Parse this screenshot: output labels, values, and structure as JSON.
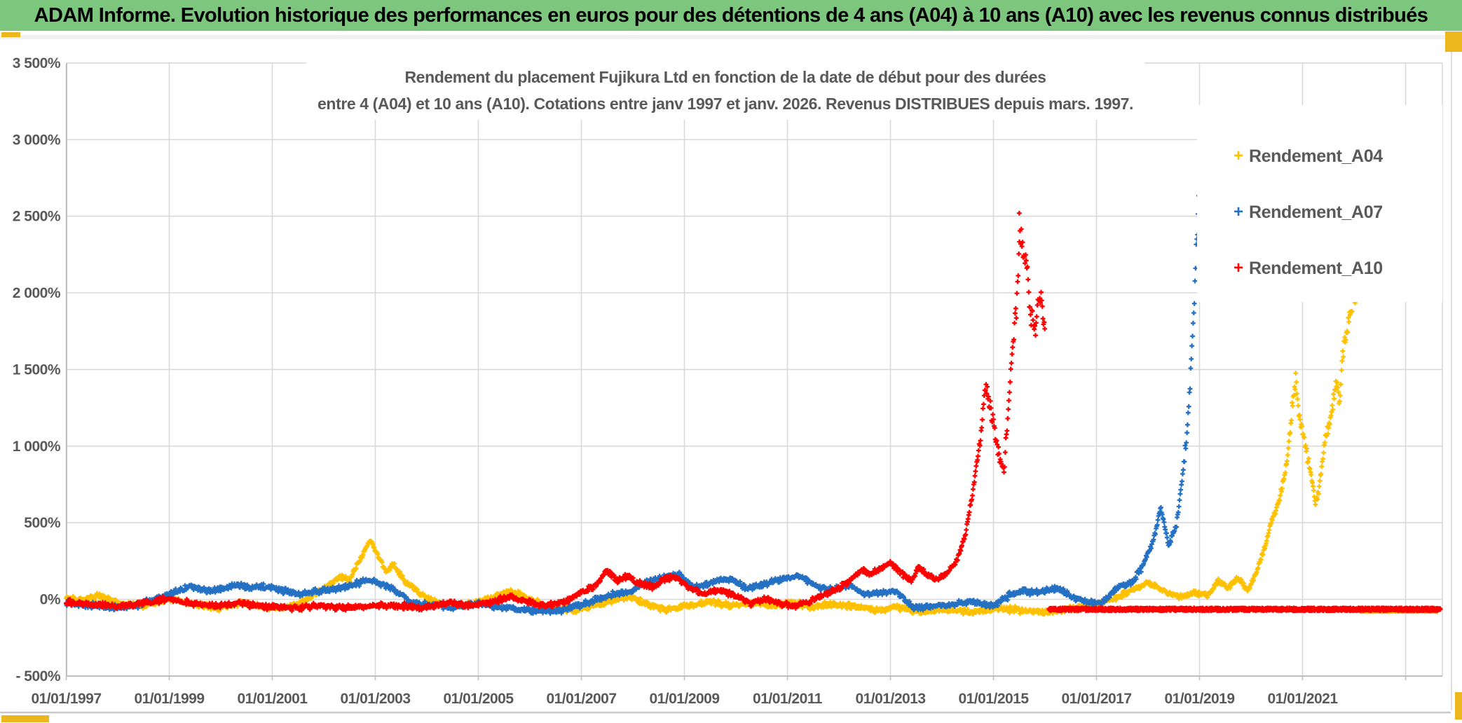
{
  "header": {
    "title": "ADAM Informe. Evolution historique des performances en euros pour des détentions de 4 ans (A04) à 10 ans (A10) avec les revenus connus distribués",
    "bg_color": "#7CC67E",
    "accent_gold": "#ECB61E"
  },
  "chart": {
    "title_line1": "Rendement du placement Fujikura Ltd en fonction de la date de début pour des durées",
    "title_line2": "entre 4 (A04) et 10 ans (A10). Cotations entre janv 1997 et janv. 2026. Revenus DISTRIBUES depuis mars. 1997.",
    "legend": [
      {
        "label": "Rendement_A04",
        "color": "#FFC000"
      },
      {
        "label": "Rendement_A07",
        "color": "#2471C4"
      },
      {
        "label": "Rendement_A10",
        "color": "#FF0000"
      }
    ],
    "grid_color": "#D9D9D9",
    "axis_color": "#BFBFBF",
    "label_color": "#595959"
  },
  "chart_data": {
    "type": "scatter",
    "title": "Rendement du placement Fujikura Ltd en fonction de la date de début pour des durées entre 4 (A04) et 10 ans (A10). Cotations entre janv 1997 et janv. 2026. Revenus DISTRIBUES depuis mars. 1997.",
    "x_axis": {
      "tick_labels": [
        "01/01/1997",
        "01/01/1999",
        "01/01/2001",
        "01/01/2003",
        "01/01/2005",
        "01/01/2007",
        "01/01/2009",
        "01/01/2011",
        "01/01/2013",
        "01/01/2015",
        "01/01/2017",
        "01/01/2019",
        "01/01/2021"
      ],
      "tick_years": [
        1997,
        1999,
        2001,
        2003,
        2005,
        2007,
        2009,
        2011,
        2013,
        2015,
        2017,
        2019,
        2021
      ],
      "gridline_years": [
        1997,
        1999,
        2001,
        2003,
        2005,
        2007,
        2009,
        2011,
        2013,
        2015,
        2017,
        2019,
        2021,
        2023
      ],
      "range_years": [
        1997,
        2023.7
      ]
    },
    "y_axis": {
      "tick_labels": [
        "3 500%",
        "3 000%",
        "2 500%",
        "2 000%",
        "1 500%",
        "1 000%",
        "500%",
        "0%",
        "- 500%"
      ],
      "tick_values": [
        3500,
        3000,
        2500,
        2000,
        1500,
        1000,
        500,
        0,
        -500
      ],
      "unit": "%",
      "range": [
        -500,
        3500
      ]
    },
    "legend_position": "top-right",
    "grid": true,
    "note": "anchors are [decimal_year, percent_return] control points read off the chart; the plotted cloud is dense near-daily samples interpolated between anchors with band noise",
    "series": [
      {
        "name": "Rendement_A04",
        "color": "#FFC000",
        "marker": "plus",
        "seed": 7,
        "anchors": [
          [
            1997.0,
            15
          ],
          [
            1997.3,
            -15
          ],
          [
            1997.6,
            25
          ],
          [
            1998.0,
            -25
          ],
          [
            1998.5,
            -45
          ],
          [
            1999.0,
            5
          ],
          [
            1999.5,
            -35
          ],
          [
            2000.0,
            -55
          ],
          [
            2000.4,
            -20
          ],
          [
            2000.9,
            -60
          ],
          [
            2001.4,
            -45
          ],
          [
            2001.8,
            30
          ],
          [
            2002.1,
            90
          ],
          [
            2002.3,
            150
          ],
          [
            2002.5,
            130
          ],
          [
            2002.7,
            260
          ],
          [
            2002.9,
            385
          ],
          [
            2003.05,
            290
          ],
          [
            2003.2,
            180
          ],
          [
            2003.35,
            230
          ],
          [
            2003.6,
            110
          ],
          [
            2003.9,
            30
          ],
          [
            2004.2,
            -20
          ],
          [
            2004.6,
            -45
          ],
          [
            2005.0,
            -20
          ],
          [
            2005.4,
            30
          ],
          [
            2005.7,
            45
          ],
          [
            2006.0,
            5
          ],
          [
            2006.4,
            -55
          ],
          [
            2006.9,
            -70
          ],
          [
            2007.3,
            -35
          ],
          [
            2007.6,
            -10
          ],
          [
            2007.9,
            20
          ],
          [
            2008.3,
            -35
          ],
          [
            2008.7,
            -65
          ],
          [
            2009.1,
            -40
          ],
          [
            2009.5,
            -15
          ],
          [
            2009.9,
            -40
          ],
          [
            2010.3,
            -20
          ],
          [
            2010.7,
            -45
          ],
          [
            2011.1,
            -20
          ],
          [
            2011.5,
            -50
          ],
          [
            2011.9,
            -30
          ],
          [
            2012.3,
            -45
          ],
          [
            2012.7,
            -70
          ],
          [
            2013.1,
            -50
          ],
          [
            2013.6,
            -80
          ],
          [
            2014.1,
            -65
          ],
          [
            2014.6,
            -85
          ],
          [
            2015.1,
            -55
          ],
          [
            2015.6,
            -75
          ],
          [
            2016.1,
            -80
          ],
          [
            2016.6,
            -55
          ],
          [
            2017.0,
            -35
          ],
          [
            2017.4,
            15
          ],
          [
            2017.7,
            60
          ],
          [
            2018.0,
            110
          ],
          [
            2018.3,
            55
          ],
          [
            2018.6,
            15
          ],
          [
            2018.9,
            40
          ],
          [
            2019.2,
            30
          ],
          [
            2019.35,
            120
          ],
          [
            2019.55,
            80
          ],
          [
            2019.75,
            140
          ],
          [
            2019.95,
            60
          ],
          [
            2020.1,
            180
          ],
          [
            2020.25,
            320
          ],
          [
            2020.4,
            520
          ],
          [
            2020.55,
            640
          ],
          [
            2020.7,
            900
          ],
          [
            2020.8,
            1280
          ],
          [
            2020.87,
            1450
          ],
          [
            2020.95,
            1150
          ],
          [
            2021.05,
            1000
          ],
          [
            2021.15,
            850
          ],
          [
            2021.25,
            620
          ],
          [
            2021.33,
            750
          ],
          [
            2021.42,
            1000
          ],
          [
            2021.5,
            1130
          ],
          [
            2021.58,
            1250
          ],
          [
            2021.65,
            1420
          ],
          [
            2021.72,
            1300
          ],
          [
            2021.8,
            1650
          ],
          [
            2021.88,
            1780
          ],
          [
            2021.95,
            1900
          ],
          [
            2022.05,
            1985
          ]
        ],
        "flat_tail": {
          "from": 2022.12,
          "to": 2023.62,
          "value": -75,
          "noise": 5,
          "step": 0.008
        },
        "extra_points": []
      },
      {
        "name": "Rendement_A07",
        "color": "#2471C4",
        "marker": "plus",
        "seed": 13,
        "anchors": [
          [
            1997.0,
            -15
          ],
          [
            1997.4,
            -40
          ],
          [
            1998.0,
            -55
          ],
          [
            1998.4,
            -35
          ],
          [
            1998.8,
            10
          ],
          [
            1999.1,
            45
          ],
          [
            1999.4,
            85
          ],
          [
            1999.7,
            55
          ],
          [
            2000.0,
            65
          ],
          [
            2000.3,
            95
          ],
          [
            2000.6,
            75
          ],
          [
            2000.9,
            85
          ],
          [
            2001.2,
            60
          ],
          [
            2001.5,
            35
          ],
          [
            2001.9,
            55
          ],
          [
            2002.3,
            70
          ],
          [
            2002.6,
            100
          ],
          [
            2002.9,
            130
          ],
          [
            2003.1,
            105
          ],
          [
            2003.4,
            60
          ],
          [
            2003.7,
            -25
          ],
          [
            2004.1,
            -40
          ],
          [
            2004.5,
            -50
          ],
          [
            2005.0,
            -30
          ],
          [
            2005.5,
            -55
          ],
          [
            2006.0,
            -70
          ],
          [
            2006.5,
            -75
          ],
          [
            2007.0,
            -35
          ],
          [
            2007.5,
            20
          ],
          [
            2008.0,
            60
          ],
          [
            2008.3,
            120
          ],
          [
            2008.9,
            165
          ],
          [
            2009.2,
            70
          ],
          [
            2009.6,
            120
          ],
          [
            2009.9,
            130
          ],
          [
            2010.2,
            75
          ],
          [
            2010.6,
            100
          ],
          [
            2010.8,
            120
          ],
          [
            2011.2,
            160
          ],
          [
            2011.6,
            80
          ],
          [
            2011.9,
            60
          ],
          [
            2012.2,
            95
          ],
          [
            2012.5,
            30
          ],
          [
            2012.8,
            45
          ],
          [
            2013.1,
            55
          ],
          [
            2013.45,
            -55
          ],
          [
            2013.8,
            -45
          ],
          [
            2014.2,
            -35
          ],
          [
            2014.6,
            -15
          ],
          [
            2015.0,
            -45
          ],
          [
            2015.3,
            25
          ],
          [
            2015.6,
            55
          ],
          [
            2015.9,
            45
          ],
          [
            2016.2,
            75
          ],
          [
            2016.5,
            25
          ],
          [
            2016.8,
            -15
          ],
          [
            2017.1,
            -25
          ],
          [
            2017.4,
            75
          ],
          [
            2017.7,
            110
          ],
          [
            2017.9,
            220
          ],
          [
            2018.1,
            380
          ],
          [
            2018.25,
            600
          ],
          [
            2018.4,
            350
          ],
          [
            2018.55,
            480
          ],
          [
            2018.65,
            750
          ],
          [
            2018.75,
            1050
          ],
          [
            2018.82,
            1400
          ],
          [
            2018.88,
            1800
          ],
          [
            2018.93,
            2250
          ],
          [
            2018.985,
            2620
          ]
        ],
        "flat_tail": null,
        "extra_points": [
          [
            2019.02,
            3190
          ]
        ]
      },
      {
        "name": "Rendement_A10",
        "color": "#FF0000",
        "marker": "plus",
        "seed": 29,
        "anchors": [
          [
            1997.0,
            -15
          ],
          [
            1997.5,
            -35
          ],
          [
            1998.0,
            -45
          ],
          [
            1998.5,
            -25
          ],
          [
            1999.0,
            5
          ],
          [
            1999.4,
            -25
          ],
          [
            1999.9,
            -45
          ],
          [
            2000.4,
            -25
          ],
          [
            2000.9,
            -50
          ],
          [
            2001.4,
            -55
          ],
          [
            2001.9,
            -40
          ],
          [
            2002.4,
            -55
          ],
          [
            2002.9,
            -45
          ],
          [
            2003.4,
            -40
          ],
          [
            2003.9,
            -55
          ],
          [
            2004.4,
            -25
          ],
          [
            2004.9,
            -40
          ],
          [
            2005.3,
            -15
          ],
          [
            2005.6,
            15
          ],
          [
            2005.9,
            -15
          ],
          [
            2006.3,
            -40
          ],
          [
            2006.7,
            -15
          ],
          [
            2007.0,
            45
          ],
          [
            2007.3,
            95
          ],
          [
            2007.5,
            195
          ],
          [
            2007.7,
            120
          ],
          [
            2007.9,
            150
          ],
          [
            2008.1,
            110
          ],
          [
            2008.4,
            80
          ],
          [
            2008.6,
            130
          ],
          [
            2008.85,
            145
          ],
          [
            2009.1,
            70
          ],
          [
            2009.4,
            35
          ],
          [
            2009.7,
            65
          ],
          [
            2010.0,
            20
          ],
          [
            2010.3,
            -25
          ],
          [
            2010.6,
            5
          ],
          [
            2010.9,
            -35
          ],
          [
            2011.1,
            -45
          ],
          [
            2011.4,
            -15
          ],
          [
            2011.7,
            25
          ],
          [
            2012.0,
            70
          ],
          [
            2012.2,
            120
          ],
          [
            2012.45,
            195
          ],
          [
            2012.6,
            160
          ],
          [
            2012.8,
            200
          ],
          [
            2013.0,
            240
          ],
          [
            2013.2,
            175
          ],
          [
            2013.4,
            120
          ],
          [
            2013.55,
            215
          ],
          [
            2013.7,
            160
          ],
          [
            2013.9,
            130
          ],
          [
            2014.1,
            170
          ],
          [
            2014.3,
            260
          ],
          [
            2014.45,
            420
          ],
          [
            2014.6,
            700
          ],
          [
            2014.75,
            1050
          ],
          [
            2014.85,
            1400
          ],
          [
            2015.0,
            1150
          ],
          [
            2015.1,
            950
          ],
          [
            2015.2,
            820
          ],
          [
            2015.35,
            1550
          ],
          [
            2015.45,
            1950
          ],
          [
            2015.52,
            2380
          ],
          [
            2015.57,
            2300
          ],
          [
            2015.65,
            2200
          ],
          [
            2015.72,
            1850
          ],
          [
            2015.8,
            1750
          ],
          [
            2015.9,
            2000
          ],
          [
            2016.0,
            1750
          ]
        ],
        "flat_tail": {
          "from": 2016.08,
          "to": 2023.68,
          "value": -65,
          "noise": 9,
          "step": 0.005
        },
        "extra_points": [
          [
            2015.5,
            2520
          ]
        ]
      }
    ]
  }
}
